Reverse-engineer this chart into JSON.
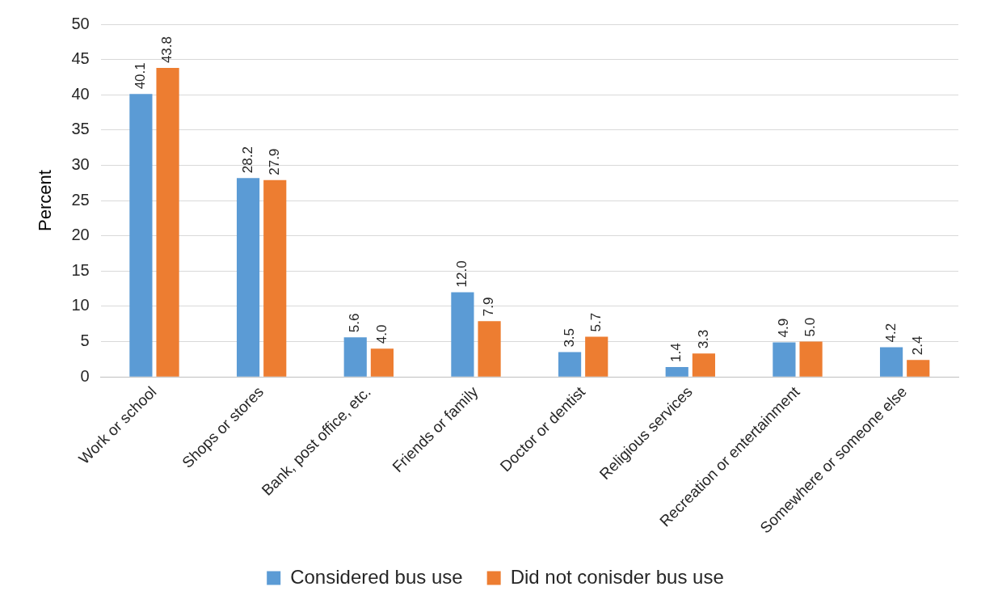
{
  "chart_data": {
    "type": "bar",
    "ylabel": "Percent",
    "categories": [
      "Work or school",
      "Shops or stores",
      "Bank, post office, etc.",
      "Friends or family",
      "Doctor or dentist",
      "Religious services",
      "Recreation or entertainment",
      "Somewhere or someone else"
    ],
    "series": [
      {
        "name": "Considered bus use",
        "color": "#5b9bd5",
        "values": [
          40.1,
          28.2,
          5.6,
          12.0,
          3.5,
          1.4,
          4.9,
          4.2
        ],
        "value_labels": [
          "40.1",
          "28.2",
          "5.6",
          "12.0",
          "3.5",
          "1.4",
          "4.9",
          "4.2"
        ]
      },
      {
        "name": "Did not conisder bus use",
        "color": "#ed7d31",
        "values": [
          43.8,
          27.9,
          4.0,
          7.9,
          5.7,
          3.3,
          5.0,
          2.4
        ],
        "value_labels": [
          "43.8",
          "27.9",
          "4.0",
          "7.9",
          "5.7",
          "3.3",
          "5.0",
          "2.4"
        ]
      }
    ],
    "ylim": [
      0,
      50
    ],
    "yticks": [
      0,
      5,
      10,
      15,
      20,
      25,
      30,
      35,
      40,
      45,
      50
    ],
    "grid": "y",
    "legend": "bottom"
  }
}
